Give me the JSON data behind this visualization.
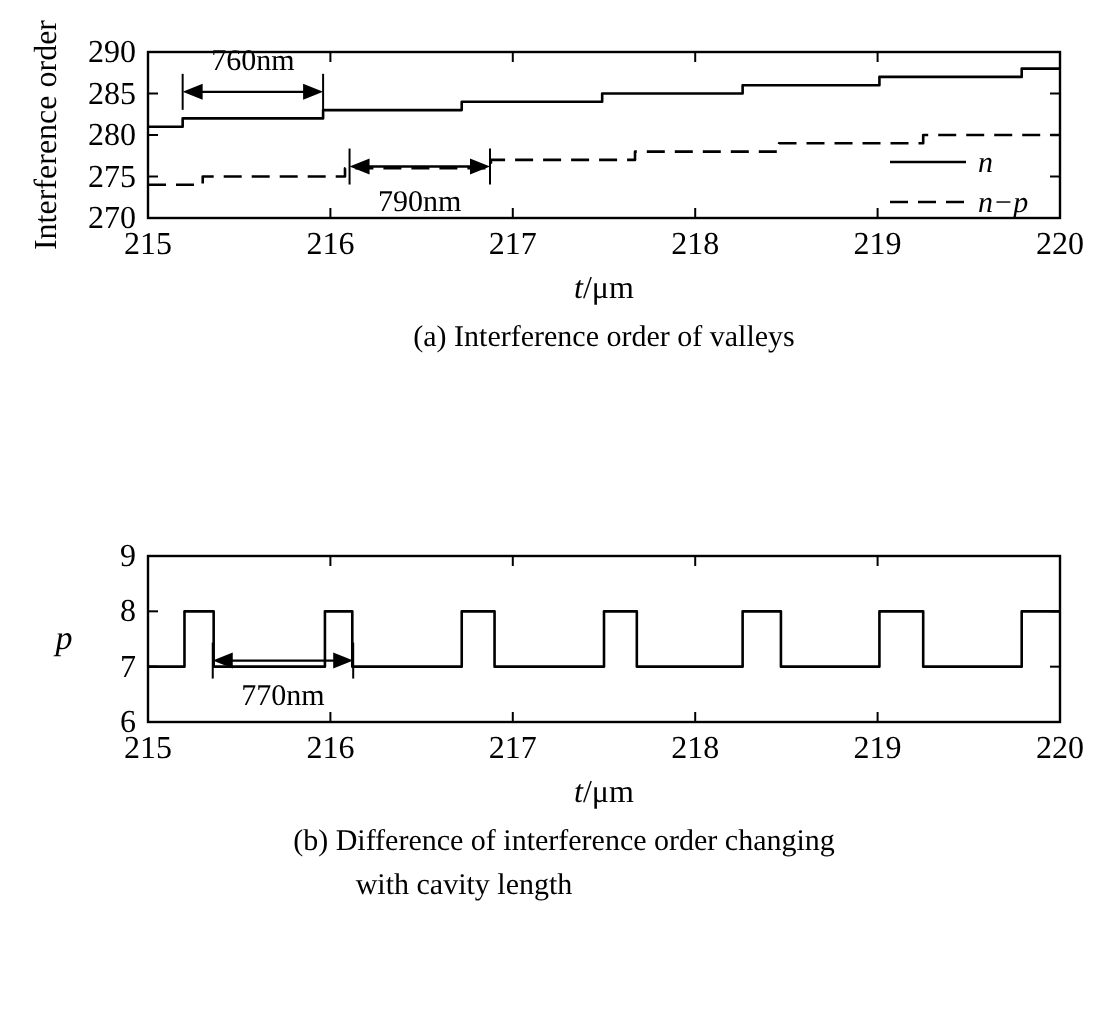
{
  "chart_data": [
    {
      "type": "step",
      "title": "(a) Interference order of valleys",
      "xlabel": "t/μm",
      "ylabel": "Interference order",
      "xlim": [
        215,
        220
      ],
      "xticks": [
        215,
        216,
        217,
        218,
        219,
        220
      ],
      "ylim": [
        270,
        290
      ],
      "yticks": [
        270,
        275,
        280,
        285,
        290
      ],
      "legend": "bottom right",
      "grid": false,
      "series": [
        {
          "name": "n",
          "color": "#000000",
          "line_style": "solid",
          "x": [
            215,
            215.19,
            215.96,
            216.72,
            217.49,
            218.26,
            219.01,
            219.79,
            220
          ],
          "values": [
            281,
            282,
            283,
            284,
            285,
            286,
            287,
            288,
            288
          ]
        },
        {
          "name": "n−p",
          "color": "#000000",
          "line_style": "dashed",
          "x": [
            215,
            215.3,
            216.08,
            216.88,
            217.67,
            218.46,
            219.25,
            220
          ],
          "values": [
            274,
            275,
            276,
            277,
            278,
            279,
            280,
            280
          ]
        }
      ],
      "annotations": [
        "760nm",
        "790nm"
      ]
    },
    {
      "type": "step",
      "title": "(b) Difference of interference order changing with cavity length",
      "xlabel": "t/μm",
      "ylabel": "p",
      "xlim": [
        215,
        220
      ],
      "xticks": [
        215,
        216,
        217,
        218,
        219,
        220
      ],
      "ylim": [
        6,
        9
      ],
      "yticks": [
        6,
        7,
        8,
        9
      ],
      "legend": false,
      "grid": false,
      "series": [
        {
          "color": "#000000",
          "line_style": "solid",
          "x": [
            215,
            215.2,
            215.36,
            215.97,
            216.12,
            216.72,
            216.9,
            217.5,
            217.68,
            218.26,
            218.47,
            219.01,
            219.25,
            219.79,
            220
          ],
          "values": [
            7,
            8,
            7,
            8,
            7,
            8,
            7,
            8,
            7,
            8,
            7,
            8,
            7,
            8,
            8
          ]
        }
      ],
      "annotations": [
        "770nm"
      ]
    }
  ]
}
